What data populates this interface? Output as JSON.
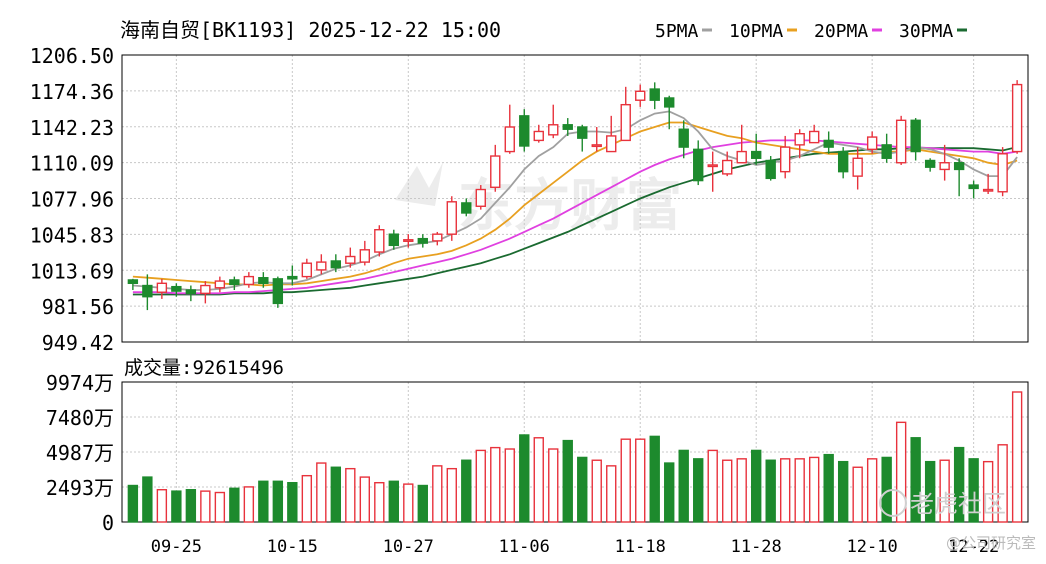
{
  "header": {
    "title": "海南自贸[BK1193] 2025-12-22 15:00",
    "legend": [
      {
        "label": "5PMA",
        "color": "#a0a0a0"
      },
      {
        "label": "10PMA",
        "color": "#e8a020"
      },
      {
        "label": "20PMA",
        "color": "#e040e0"
      },
      {
        "label": "30PMA",
        "color": "#1a6a30"
      }
    ]
  },
  "volume_header": {
    "label": "成交量:",
    "value": "92615496"
  },
  "watermarks": {
    "center": "东方财富",
    "corner": "老虎社区",
    "corner_sub": "@公司研究室"
  },
  "colors": {
    "up": "#e8323c",
    "down": "#1d8a2d",
    "axis": "#000000",
    "grid": "#c8c8c8"
  },
  "chart_data": [
    {
      "type": "candlestick",
      "y_ticks": [
        "1206.50",
        "1174.36",
        "1142.23",
        "1110.09",
        "1077.96",
        "1045.83",
        "1013.69",
        "981.56",
        "949.42"
      ],
      "ylim": [
        949.42,
        1206.5
      ],
      "x_ticks": [
        {
          "label": "09-25",
          "index": 3
        },
        {
          "label": "10-15",
          "index": 11
        },
        {
          "label": "10-27",
          "index": 19
        },
        {
          "label": "11-06",
          "index": 27
        },
        {
          "label": "11-18",
          "index": 35
        },
        {
          "label": "11-28",
          "index": 43
        },
        {
          "label": "12-10",
          "index": 51
        },
        {
          "label": "12-22",
          "index": 58
        }
      ],
      "candles": [
        [
          1005,
          1002,
          1006,
          996
        ],
        [
          1000,
          990,
          1010,
          978
        ],
        [
          994,
          1002,
          1006,
          988
        ],
        [
          999,
          995,
          1002,
          990
        ],
        [
          996,
          993,
          1000,
          986
        ],
        [
          993,
          1000,
          1004,
          984
        ],
        [
          998,
          1004,
          1008,
          994
        ],
        [
          1005,
          1001,
          1008,
          996
        ],
        [
          1001,
          1008,
          1012,
          998
        ],
        [
          1007,
          1002,
          1012,
          998
        ],
        [
          1006,
          984,
          1008,
          980
        ],
        [
          1008,
          1006,
          1018,
          1000
        ],
        [
          1008,
          1020,
          1024,
          1006
        ],
        [
          1014,
          1021,
          1028,
          1010
        ],
        [
          1022,
          1016,
          1028,
          1012
        ],
        [
          1020,
          1026,
          1034,
          1016
        ],
        [
          1021,
          1032,
          1040,
          1018
        ],
        [
          1030,
          1050,
          1054,
          1026
        ],
        [
          1046,
          1036,
          1050,
          1032
        ],
        [
          1040,
          1041,
          1046,
          1034
        ],
        [
          1042,
          1038,
          1046,
          1034
        ],
        [
          1040,
          1046,
          1048,
          1036
        ],
        [
          1046,
          1075,
          1080,
          1040
        ],
        [
          1074,
          1065,
          1078,
          1062
        ],
        [
          1071,
          1086,
          1090,
          1068
        ],
        [
          1088,
          1116,
          1126,
          1084
        ],
        [
          1120,
          1142,
          1162,
          1118
        ],
        [
          1152,
          1125,
          1158,
          1120
        ],
        [
          1130,
          1138,
          1144,
          1128
        ],
        [
          1135,
          1144,
          1162,
          1132
        ],
        [
          1144,
          1140,
          1150,
          1134
        ],
        [
          1142,
          1132,
          1144,
          1120
        ],
        [
          1126,
          1126,
          1142,
          1120
        ],
        [
          1120,
          1134,
          1152,
          1120
        ],
        [
          1130,
          1162,
          1178,
          1130
        ],
        [
          1166,
          1174,
          1180,
          1160
        ],
        [
          1176,
          1166,
          1182,
          1158
        ],
        [
          1168,
          1160,
          1170,
          1140
        ],
        [
          1140,
          1124,
          1148,
          1114
        ],
        [
          1122,
          1094,
          1130,
          1090
        ],
        [
          1108,
          1108,
          1120,
          1084
        ],
        [
          1100,
          1112,
          1120,
          1098
        ],
        [
          1110,
          1120,
          1144,
          1110
        ],
        [
          1120,
          1114,
          1136,
          1108
        ],
        [
          1112,
          1096,
          1116,
          1094
        ],
        [
          1102,
          1124,
          1134,
          1096
        ],
        [
          1126,
          1136,
          1140,
          1114
        ],
        [
          1128,
          1138,
          1144,
          1128
        ],
        [
          1130,
          1124,
          1138,
          1118
        ],
        [
          1120,
          1102,
          1124,
          1096
        ],
        [
          1098,
          1114,
          1124,
          1086
        ],
        [
          1122,
          1133,
          1138,
          1118
        ],
        [
          1126,
          1114,
          1136,
          1110
        ],
        [
          1110,
          1148,
          1152,
          1108
        ],
        [
          1148,
          1120,
          1150,
          1112
        ],
        [
          1112,
          1106,
          1114,
          1102
        ],
        [
          1104,
          1110,
          1126,
          1094
        ],
        [
          1110,
          1104,
          1114,
          1080
        ],
        [
          1090,
          1087,
          1094,
          1078
        ],
        [
          1085,
          1086,
          1100,
          1082
        ],
        [
          1084,
          1118,
          1124,
          1080
        ],
        [
          1120,
          1180,
          1184,
          1118
        ]
      ],
      "ma": {
        "5PMA": [
          1000,
          999,
          998,
          997,
          996,
          996,
          997,
          999,
          1002,
          1003,
          1002,
          1002,
          1005,
          1010,
          1015,
          1018,
          1022,
          1028,
          1033,
          1036,
          1038,
          1040,
          1046,
          1052,
          1060,
          1074,
          1088,
          1104,
          1116,
          1124,
          1136,
          1138,
          1138,
          1137,
          1140,
          1148,
          1154,
          1156,
          1150,
          1138,
          1122,
          1116,
          1112,
          1108,
          1110,
          1112,
          1116,
          1122,
          1128,
          1126,
          1124,
          1120,
          1118,
          1120,
          1124,
          1122,
          1118,
          1112,
          1104,
          1098,
          1098,
          1115
        ],
        "10PMA": [
          1008,
          1007,
          1006,
          1005,
          1004,
          1003,
          1002,
          1001,
          1001,
          1000,
          1001,
          1001,
          1002,
          1004,
          1006,
          1008,
          1011,
          1015,
          1020,
          1024,
          1026,
          1028,
          1031,
          1036,
          1042,
          1050,
          1060,
          1072,
          1082,
          1092,
          1102,
          1112,
          1120,
          1126,
          1132,
          1138,
          1142,
          1146,
          1146,
          1142,
          1138,
          1134,
          1132,
          1128,
          1126,
          1124,
          1122,
          1120,
          1118,
          1118,
          1118,
          1118,
          1120,
          1120,
          1122,
          1120,
          1118,
          1116,
          1114,
          1110,
          1108,
          1112
        ],
        "20PMA": [
          994,
          994,
          994,
          993,
          993,
          993,
          993,
          994,
          994,
          995,
          996,
          997,
          998,
          1000,
          1002,
          1004,
          1006,
          1009,
          1012,
          1015,
          1018,
          1021,
          1024,
          1028,
          1032,
          1037,
          1042,
          1048,
          1054,
          1060,
          1067,
          1074,
          1081,
          1088,
          1095,
          1102,
          1108,
          1113,
          1117,
          1121,
          1124,
          1126,
          1128,
          1129,
          1130,
          1130,
          1130,
          1130,
          1129,
          1128,
          1127,
          1126,
          1125,
          1124,
          1124,
          1123,
          1122,
          1121,
          1120,
          1120,
          1118,
          1120
        ],
        "30PMA": [
          992,
          992,
          992,
          992,
          992,
          992,
          992,
          993,
          993,
          993,
          994,
          994,
          995,
          996,
          997,
          998,
          1000,
          1002,
          1004,
          1006,
          1008,
          1011,
          1014,
          1017,
          1020,
          1024,
          1028,
          1033,
          1038,
          1043,
          1048,
          1054,
          1060,
          1066,
          1072,
          1078,
          1083,
          1088,
          1092,
          1096,
          1100,
          1104,
          1107,
          1110,
          1112,
          1114,
          1116,
          1118,
          1119,
          1120,
          1121,
          1122,
          1122,
          1123,
          1123,
          1123,
          1123,
          1123,
          1123,
          1122,
          1121,
          1124
        ]
      }
    },
    {
      "type": "bar",
      "name": "成交量",
      "y_ticks": [
        "9974万",
        "7480万",
        "4987万",
        "2493万",
        "0"
      ],
      "ylim": [
        0,
        9974
      ],
      "units": "万",
      "values": [
        2600,
        3200,
        2300,
        2200,
        2300,
        2200,
        2100,
        2400,
        2500,
        2900,
        2900,
        2800,
        3300,
        4200,
        3900,
        3800,
        3200,
        2800,
        2900,
        2700,
        2600,
        4000,
        3800,
        4400,
        5100,
        5300,
        5200,
        6200,
        6000,
        5200,
        5800,
        4600,
        4400,
        4000,
        5900,
        5900,
        6100,
        4200,
        5100,
        4500,
        5100,
        4400,
        4500,
        5100,
        4400,
        4500,
        4500,
        4600,
        4800,
        4300,
        3900,
        4500,
        4600,
        7100,
        6000,
        4300,
        4400,
        5300,
        4500,
        4300,
        5500,
        9262
      ]
    }
  ]
}
